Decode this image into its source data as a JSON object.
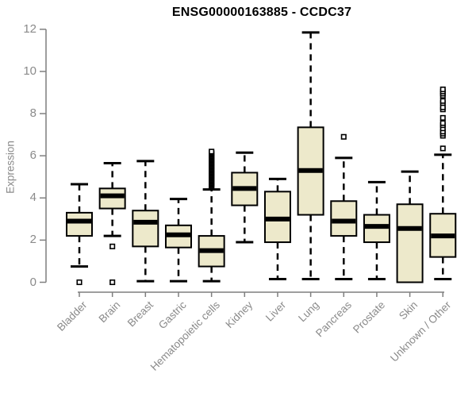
{
  "chart_data": {
    "type": "boxplot",
    "title": "ENSG00000163885 - CCDC37",
    "ylabel": "Expression",
    "xlabel": "",
    "ylim": [
      0,
      12
    ],
    "yticks": [
      0,
      2,
      4,
      6,
      8,
      10,
      12
    ],
    "grid": false,
    "legend": null,
    "categories": [
      "Bladder",
      "Brain",
      "Breast",
      "Gastric",
      "Hematopoietic cells",
      "Kidney",
      "Liver",
      "Lung",
      "Pancreas",
      "Prostate",
      "Skin",
      "Unknown / Other"
    ],
    "boxes": [
      {
        "category": "Bladder",
        "whisker_low": 0.75,
        "q1": 2.2,
        "median": 2.9,
        "q3": 3.3,
        "whisker_high": 4.65,
        "outliers": [
          0
        ]
      },
      {
        "category": "Brain",
        "whisker_low": 2.2,
        "q1": 3.5,
        "median": 4.1,
        "q3": 4.45,
        "whisker_high": 5.65,
        "outliers": [
          1.7,
          0
        ]
      },
      {
        "category": "Breast",
        "whisker_low": 0.05,
        "q1": 1.7,
        "median": 2.85,
        "q3": 3.4,
        "whisker_high": 5.75,
        "outliers": []
      },
      {
        "category": "Gastric",
        "whisker_low": 0.05,
        "q1": 1.65,
        "median": 2.25,
        "q3": 2.7,
        "whisker_high": 3.95,
        "outliers": []
      },
      {
        "category": "Hematopoietic cells",
        "whisker_low": 0.05,
        "q1": 0.75,
        "median": 1.5,
        "q3": 2.2,
        "whisker_high": 4.4,
        "outliers": [
          4.5,
          4.55,
          4.6,
          4.65,
          4.7,
          4.75,
          4.8,
          4.85,
          4.9,
          4.95,
          5.0,
          5.05,
          5.1,
          5.15,
          5.2,
          5.25,
          5.3,
          5.35,
          5.4,
          5.45,
          5.5,
          5.55,
          5.6,
          5.65,
          5.7,
          5.75,
          5.8,
          5.85,
          5.9,
          5.95,
          6.0,
          6.05,
          6.1,
          6.15,
          6.2
        ]
      },
      {
        "category": "Kidney",
        "whisker_low": 1.9,
        "q1": 3.65,
        "median": 4.45,
        "q3": 5.2,
        "whisker_high": 6.15,
        "outliers": []
      },
      {
        "category": "Liver",
        "whisker_low": 0.15,
        "q1": 1.9,
        "median": 3.0,
        "q3": 4.3,
        "whisker_high": 4.9,
        "outliers": []
      },
      {
        "category": "Lung",
        "whisker_low": 0.15,
        "q1": 3.2,
        "median": 5.3,
        "q3": 7.35,
        "whisker_high": 11.85,
        "outliers": []
      },
      {
        "category": "Pancreas",
        "whisker_low": 0.15,
        "q1": 2.2,
        "median": 2.9,
        "q3": 3.85,
        "whisker_high": 5.9,
        "outliers": [
          6.9
        ]
      },
      {
        "category": "Prostate",
        "whisker_low": 0.15,
        "q1": 1.9,
        "median": 2.65,
        "q3": 3.2,
        "whisker_high": 4.75,
        "outliers": []
      },
      {
        "category": "Skin",
        "whisker_low": 0.0,
        "q1": 0.0,
        "median": 2.55,
        "q3": 3.7,
        "whisker_high": 5.25,
        "outliers": []
      },
      {
        "category": "Unknown / Other",
        "whisker_low": 0.15,
        "q1": 1.2,
        "median": 2.2,
        "q3": 3.25,
        "whisker_high": 6.05,
        "outliers": [
          6.35,
          6.95,
          7.05,
          7.15,
          7.3,
          7.45,
          7.55,
          7.8,
          8.2,
          8.3,
          8.5,
          8.6,
          8.85,
          8.95,
          9.05,
          9.15
        ]
      }
    ],
    "colors": {
      "box_fill": "#EDE9CB",
      "box_border": "#000000",
      "median": "#000000",
      "whisker": "#000000",
      "outlier": "#000000",
      "axis_line": "#7F7F7F",
      "axis_text": "#8A8A8A",
      "title": "#000000",
      "background": "#FFFFFF"
    }
  }
}
